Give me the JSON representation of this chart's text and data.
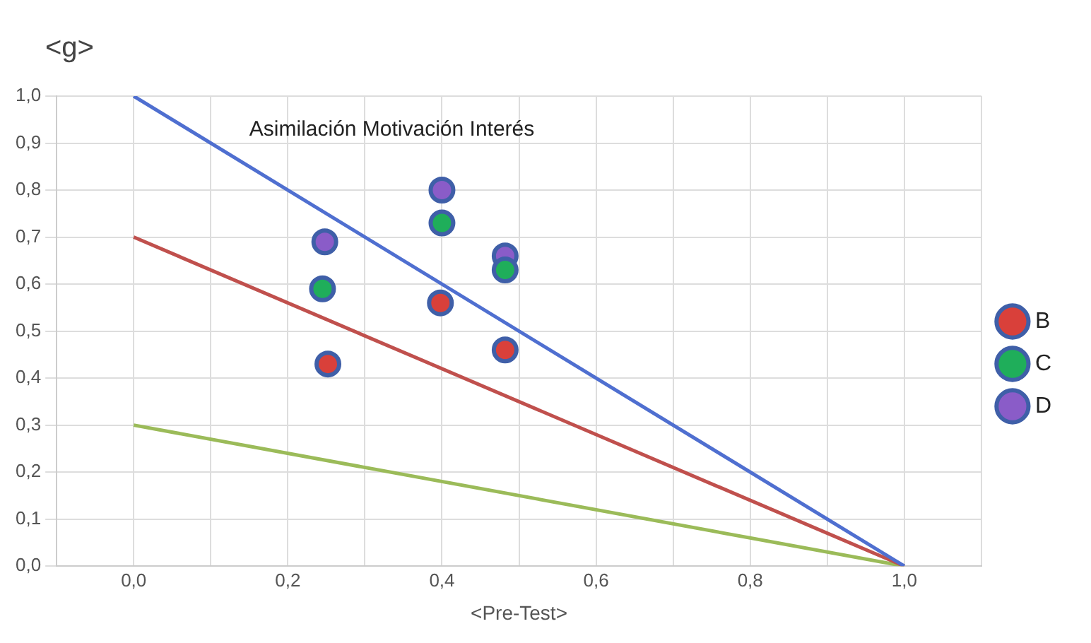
{
  "chart_data": {
    "type": "scatter",
    "ylabel": "<g>",
    "xlabel": "<Pre-Test>",
    "annotations": [
      "Asimilación Motivación Interés"
    ],
    "series": [
      {
        "name": "B",
        "color": "#d9403a",
        "x": [
          0.252,
          0.398,
          0.482
        ],
        "values": [
          0.43,
          0.56,
          0.46
        ]
      },
      {
        "name": "C",
        "color": "#1fae5a",
        "x": [
          0.245,
          0.4,
          0.482
        ],
        "values": [
          0.59,
          0.73,
          0.63
        ]
      },
      {
        "name": "D",
        "color": "#8a5cc8",
        "x": [
          0.248,
          0.4,
          0.482
        ],
        "values": [
          0.69,
          0.8,
          0.66
        ]
      },
      {
        "type": "line",
        "marker": "none",
        "color": "#4f6fd0",
        "x": [
          0,
          1
        ],
        "values": [
          1,
          0
        ]
      },
      {
        "type": "line",
        "marker": "none",
        "color": "#c0504d",
        "x": [
          0,
          1
        ],
        "values": [
          0.7,
          0
        ]
      },
      {
        "type": "line",
        "marker": "none",
        "color": "#9bbb59",
        "x": [
          0,
          1
        ],
        "values": [
          0.3,
          0
        ]
      }
    ],
    "marker": "circle",
    "legend": "right",
    "grid": true,
    "xlim": [
      -0.1,
      1.1
    ],
    "xticks": [
      {
        "value": -0.1,
        "label": null
      },
      {
        "value": 0,
        "label": "0,0"
      },
      {
        "value": 0.1,
        "label": null
      },
      {
        "value": 0.2,
        "label": "0,2"
      },
      {
        "value": 0.3,
        "label": null
      },
      {
        "value": 0.4,
        "label": "0,4"
      },
      {
        "value": 0.5,
        "label": null
      },
      {
        "value": 0.6,
        "label": "0,6"
      },
      {
        "value": 0.7,
        "label": null
      },
      {
        "value": 0.8,
        "label": "0,8"
      },
      {
        "value": 0.9,
        "label": null
      },
      {
        "value": 1,
        "label": "1,0"
      },
      {
        "value": 1.1,
        "label": null
      }
    ],
    "ylim": [
      0,
      1
    ],
    "yticks": [
      {
        "value": 0,
        "label": "0,0"
      },
      {
        "value": 0.1,
        "label": "0,1"
      },
      {
        "value": 0.2,
        "label": "0,2"
      },
      {
        "value": 0.3,
        "label": "0,3"
      },
      {
        "value": 0.4,
        "label": "0,4"
      },
      {
        "value": 0.5,
        "label": "0,5"
      },
      {
        "value": 0.6,
        "label": "0,6"
      },
      {
        "value": 0.7,
        "label": "0,7"
      },
      {
        "value": 0.8,
        "label": "0,8"
      },
      {
        "value": 0.9,
        "label": "0,9"
      },
      {
        "value": 1,
        "label": "1,0"
      }
    ]
  }
}
